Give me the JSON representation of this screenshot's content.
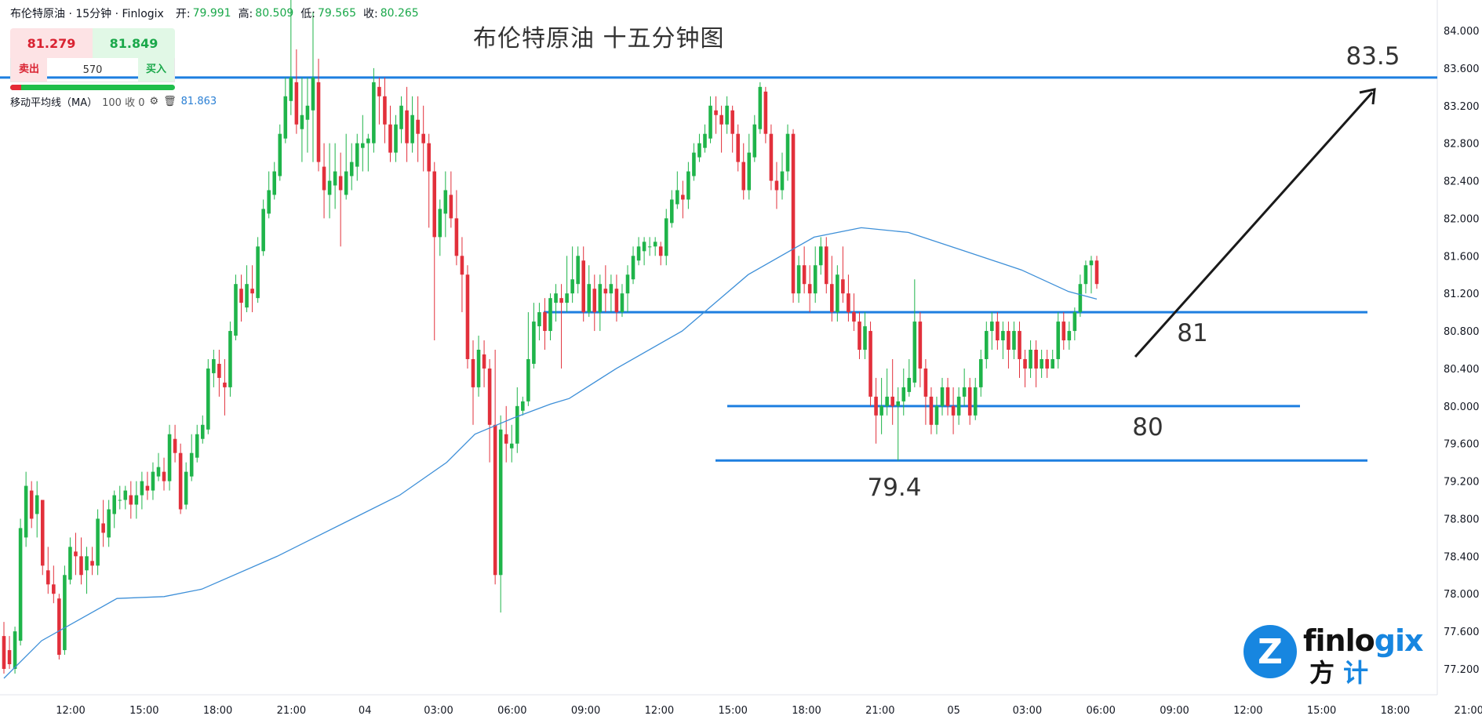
{
  "header": {
    "symbol": "布伦特原油 · 15分钟 · Finlogix",
    "open_label": "开:",
    "open": "79.991",
    "high_label": "高:",
    "high": "80.509",
    "low_label": "低:",
    "low": "79.565",
    "close_label": "收:",
    "close": "80.265"
  },
  "trade": {
    "sell_price": "81.279",
    "buy_price": "81.849",
    "sell_label": "卖出",
    "buy_label": "买入",
    "quantity": "570"
  },
  "indicator": {
    "label": "移动平均线（MA）",
    "params": "100 收 0",
    "value": "81.863",
    "gear_icon": "gear-icon",
    "trash_icon": "trash-icon"
  },
  "logo": {
    "word": "finlogix",
    "word_accent": "gix",
    "cn_1": "方",
    "cn_2": "计",
    "mark": "Z"
  },
  "chart_data": {
    "type": "candlestick",
    "title": "布伦特原油 十五分钟图",
    "ylim": [
      77.0,
      84.2
    ],
    "y_ticks": [
      "84.000",
      "83.600",
      "83.200",
      "82.800",
      "82.400",
      "82.000",
      "81.600",
      "81.200",
      "80.800",
      "80.400",
      "80.000",
      "79.600",
      "79.200",
      "78.800",
      "78.400",
      "78.000",
      "77.600",
      "77.200"
    ],
    "x_ticks": [
      "12:00",
      "15:00",
      "18:00",
      "21:00",
      "04",
      "03:00",
      "06:00",
      "09:00",
      "12:00",
      "15:00",
      "18:00",
      "21:00",
      "05",
      "03:00",
      "06:00",
      "09:00",
      "12:00",
      "15:00",
      "18:00",
      "21:00"
    ],
    "colors": {
      "up": "#1fb44a",
      "down": "#e2303b",
      "ma": "#3d8fd8",
      "level": "#1e7fe0",
      "arrow": "#1a1a1a"
    },
    "levels": [
      {
        "label": "83.5",
        "price": 83.5
      },
      {
        "label": "81",
        "price": 81.0
      },
      {
        "label": "80",
        "price": 80.0
      },
      {
        "label": "79.4",
        "price": 79.42
      }
    ],
    "candles": [
      [
        77.55,
        77.2,
        77.7,
        77.15
      ],
      [
        77.4,
        77.25,
        77.55,
        77.2
      ],
      [
        77.2,
        77.6,
        77.65,
        77.15
      ],
      [
        77.5,
        78.7,
        78.8,
        77.45
      ],
      [
        78.6,
        79.15,
        79.3,
        78.5
      ],
      [
        79.1,
        78.8,
        79.2,
        78.7
      ],
      [
        78.85,
        79.05,
        79.2,
        78.6
      ],
      [
        79.0,
        78.3,
        79.0,
        78.2
      ],
      [
        78.25,
        78.1,
        78.5,
        78.0
      ],
      [
        78.1,
        78.0,
        78.3,
        77.9
      ],
      [
        77.95,
        77.35,
        78.0,
        77.3
      ],
      [
        77.4,
        78.2,
        78.3,
        77.35
      ],
      [
        78.15,
        78.5,
        78.6,
        78.1
      ],
      [
        78.45,
        78.4,
        78.65,
        78.2
      ],
      [
        78.4,
        78.2,
        78.6,
        78.1
      ],
      [
        78.25,
        78.4,
        78.5,
        78.0
      ],
      [
        78.35,
        78.3,
        78.5,
        78.2
      ],
      [
        78.3,
        78.8,
        78.9,
        78.2
      ],
      [
        78.75,
        78.65,
        79.0,
        78.5
      ],
      [
        78.6,
        78.9,
        79.0,
        78.5
      ],
      [
        78.85,
        79.05,
        79.1,
        78.7
      ],
      [
        79.0,
        79.0,
        79.15,
        78.9
      ],
      [
        79.0,
        79.1,
        79.15,
        78.9
      ],
      [
        79.05,
        78.95,
        79.2,
        78.8
      ],
      [
        78.95,
        79.05,
        79.2,
        78.8
      ],
      [
        79.05,
        79.2,
        79.3,
        78.9
      ],
      [
        79.15,
        79.1,
        79.3,
        79.0
      ],
      [
        79.1,
        79.3,
        79.4,
        79.0
      ],
      [
        79.25,
        79.35,
        79.5,
        79.2
      ],
      [
        79.3,
        79.2,
        79.45,
        79.1
      ],
      [
        79.2,
        79.7,
        79.8,
        79.1
      ],
      [
        79.65,
        79.5,
        79.8,
        79.4
      ],
      [
        79.5,
        78.9,
        79.6,
        78.85
      ],
      [
        78.95,
        79.3,
        79.4,
        78.9
      ],
      [
        79.25,
        79.5,
        79.7,
        79.2
      ],
      [
        79.45,
        79.7,
        79.8,
        79.4
      ],
      [
        79.65,
        79.8,
        79.9,
        79.6
      ],
      [
        79.75,
        80.4,
        80.5,
        79.7
      ],
      [
        80.35,
        80.5,
        80.6,
        80.2
      ],
      [
        80.45,
        80.3,
        80.6,
        80.1
      ],
      [
        80.25,
        80.2,
        80.5,
        79.9
      ],
      [
        80.2,
        80.8,
        80.9,
        80.1
      ],
      [
        80.75,
        81.3,
        81.4,
        80.7
      ],
      [
        81.25,
        81.1,
        81.4,
        80.9
      ],
      [
        81.05,
        81.3,
        81.5,
        81.0
      ],
      [
        81.25,
        81.2,
        81.5,
        81.0
      ],
      [
        81.15,
        81.7,
        81.8,
        81.1
      ],
      [
        81.65,
        82.1,
        82.2,
        81.6
      ],
      [
        82.05,
        82.3,
        82.5,
        82.0
      ],
      [
        82.25,
        82.5,
        82.6,
        82.2
      ],
      [
        82.45,
        82.9,
        83.0,
        82.4
      ],
      [
        82.85,
        83.3,
        83.5,
        82.8
      ],
      [
        83.25,
        83.5,
        84.4,
        83.1
      ],
      [
        83.45,
        83.0,
        83.8,
        82.9
      ],
      [
        82.95,
        83.1,
        83.5,
        82.6
      ],
      [
        83.05,
        83.2,
        83.5,
        82.7
      ],
      [
        83.15,
        83.5,
        84.2,
        82.6
      ],
      [
        83.45,
        82.6,
        83.7,
        82.5
      ],
      [
        82.55,
        82.3,
        82.8,
        82.0
      ],
      [
        82.25,
        82.4,
        82.8,
        82.0
      ],
      [
        82.35,
        82.5,
        82.8,
        82.1
      ],
      [
        82.45,
        82.3,
        82.7,
        81.7
      ],
      [
        82.25,
        82.5,
        82.9,
        82.2
      ],
      [
        82.45,
        82.6,
        82.8,
        82.3
      ],
      [
        82.55,
        82.8,
        82.9,
        82.4
      ],
      [
        82.75,
        82.8,
        83.1,
        82.5
      ],
      [
        82.8,
        82.85,
        82.9,
        82.5
      ],
      [
        82.8,
        83.45,
        83.6,
        82.7
      ],
      [
        83.4,
        83.3,
        83.5,
        83.0
      ],
      [
        83.3,
        83.0,
        83.5,
        82.8
      ],
      [
        83.0,
        82.7,
        83.2,
        82.6
      ],
      [
        82.7,
        83.0,
        83.1,
        82.6
      ],
      [
        82.95,
        83.2,
        83.3,
        82.8
      ],
      [
        83.15,
        82.8,
        83.4,
        82.6
      ],
      [
        82.8,
        83.1,
        83.3,
        82.7
      ],
      [
        83.05,
        82.9,
        83.3,
        82.6
      ],
      [
        82.9,
        82.8,
        83.2,
        82.5
      ],
      [
        82.8,
        82.5,
        82.9,
        81.9
      ],
      [
        82.5,
        81.8,
        82.6,
        80.7
      ],
      [
        81.8,
        82.1,
        82.2,
        81.6
      ],
      [
        82.05,
        82.3,
        82.5,
        81.8
      ],
      [
        82.25,
        82.0,
        82.5,
        81.9
      ],
      [
        82.0,
        81.6,
        82.3,
        81.5
      ],
      [
        81.6,
        81.4,
        81.8,
        81.0
      ],
      [
        81.4,
        80.5,
        81.5,
        80.4
      ],
      [
        80.5,
        80.2,
        80.7,
        79.8
      ],
      [
        80.2,
        80.6,
        80.75,
        80.1
      ],
      [
        80.55,
        80.4,
        80.7,
        80.2
      ],
      [
        80.4,
        79.8,
        80.5,
        79.4
      ],
      [
        79.8,
        78.2,
        80.6,
        78.1
      ],
      [
        78.2,
        79.75,
        79.9,
        77.8
      ],
      [
        79.7,
        79.6,
        80.0,
        79.4
      ],
      [
        79.55,
        79.6,
        79.8,
        79.4
      ],
      [
        79.6,
        80.0,
        80.2,
        79.5
      ],
      [
        79.95,
        80.05,
        80.1,
        79.9
      ],
      [
        80.05,
        80.5,
        81.0,
        80.0
      ],
      [
        80.45,
        80.9,
        81.1,
        80.4
      ],
      [
        80.85,
        81.0,
        81.1,
        80.7
      ],
      [
        81.0,
        80.8,
        81.15,
        80.6
      ],
      [
        80.8,
        81.15,
        81.2,
        80.7
      ],
      [
        81.1,
        81.2,
        81.3,
        80.9
      ],
      [
        81.15,
        81.1,
        81.3,
        80.4
      ],
      [
        81.1,
        81.2,
        81.6,
        81.0
      ],
      [
        81.2,
        81.35,
        81.7,
        81.1
      ],
      [
        81.3,
        81.6,
        81.7,
        81.2
      ],
      [
        81.55,
        81.0,
        81.7,
        80.9
      ],
      [
        81.0,
        81.3,
        81.5,
        80.95
      ],
      [
        81.25,
        81.0,
        81.4,
        80.8
      ],
      [
        81.0,
        81.3,
        81.4,
        80.8
      ],
      [
        81.25,
        81.2,
        81.5,
        81.0
      ],
      [
        81.2,
        81.3,
        81.4,
        81.0
      ],
      [
        81.25,
        81.0,
        81.4,
        80.9
      ],
      [
        81.0,
        81.2,
        81.3,
        80.95
      ],
      [
        81.2,
        81.4,
        81.5,
        81.0
      ],
      [
        81.35,
        81.6,
        81.7,
        81.3
      ],
      [
        81.55,
        81.7,
        81.8,
        81.5
      ],
      [
        81.65,
        81.75,
        81.8,
        81.5
      ],
      [
        81.7,
        81.7,
        81.8,
        81.6
      ],
      [
        81.7,
        81.75,
        81.8,
        81.6
      ],
      [
        81.7,
        81.6,
        81.75,
        81.5
      ],
      [
        81.6,
        82.0,
        82.1,
        81.5
      ],
      [
        81.95,
        82.2,
        82.3,
        81.9
      ],
      [
        82.15,
        82.3,
        82.5,
        82.1
      ],
      [
        82.25,
        82.2,
        82.4,
        82.0
      ],
      [
        82.2,
        82.5,
        82.6,
        82.1
      ],
      [
        82.45,
        82.7,
        82.8,
        82.4
      ],
      [
        82.65,
        82.8,
        82.9,
        82.6
      ],
      [
        82.75,
        82.9,
        83.0,
        82.7
      ],
      [
        82.85,
        83.2,
        83.3,
        82.8
      ],
      [
        83.15,
        83.1,
        83.3,
        82.9
      ],
      [
        83.1,
        83.0,
        83.2,
        82.7
      ],
      [
        83.0,
        83.2,
        83.3,
        82.9
      ],
      [
        83.15,
        82.9,
        83.2,
        82.7
      ],
      [
        82.9,
        82.6,
        83.0,
        82.5
      ],
      [
        82.6,
        82.3,
        82.8,
        82.2
      ],
      [
        82.3,
        82.7,
        82.9,
        82.2
      ],
      [
        82.65,
        83.0,
        83.1,
        82.6
      ],
      [
        82.95,
        83.4,
        83.45,
        82.9
      ],
      [
        83.35,
        82.9,
        83.4,
        82.8
      ],
      [
        82.9,
        82.4,
        83.0,
        82.3
      ],
      [
        82.4,
        82.3,
        82.6,
        82.1
      ],
      [
        82.3,
        82.5,
        82.7,
        82.2
      ],
      [
        82.5,
        82.9,
        83.0,
        82.4
      ],
      [
        82.9,
        81.2,
        82.95,
        81.1
      ],
      [
        81.2,
        81.5,
        81.6,
        81.1
      ],
      [
        81.5,
        81.3,
        81.7,
        81.2
      ],
      [
        81.3,
        81.2,
        81.5,
        81.0
      ],
      [
        81.2,
        81.5,
        81.7,
        81.1
      ],
      [
        81.5,
        81.7,
        81.8,
        81.4
      ],
      [
        81.7,
        81.3,
        81.8,
        81.2
      ],
      [
        81.3,
        81.0,
        81.6,
        80.9
      ],
      [
        81.0,
        81.4,
        81.5,
        80.9
      ],
      [
        81.35,
        81.2,
        81.7,
        81.1
      ],
      [
        81.2,
        81.0,
        81.4,
        80.9
      ],
      [
        81.0,
        80.9,
        81.2,
        80.8
      ],
      [
        80.9,
        80.6,
        81.0,
        80.5
      ],
      [
        80.6,
        80.85,
        81.0,
        80.5
      ],
      [
        80.8,
        80.1,
        80.9,
        80.0
      ],
      [
        80.1,
        79.9,
        80.3,
        79.6
      ],
      [
        79.9,
        80.0,
        80.3,
        79.7
      ],
      [
        80.0,
        80.1,
        80.4,
        79.9
      ],
      [
        80.1,
        80.0,
        80.5,
        79.8
      ],
      [
        80.0,
        80.05,
        80.2,
        79.42
      ],
      [
        80.05,
        80.2,
        80.4,
        79.9
      ],
      [
        80.15,
        80.3,
        80.5,
        80.1
      ],
      [
        80.25,
        80.9,
        81.35,
        80.2
      ],
      [
        80.9,
        80.4,
        81.0,
        80.2
      ],
      [
        80.4,
        80.1,
        80.5,
        79.8
      ],
      [
        80.1,
        79.8,
        80.2,
        79.7
      ],
      [
        79.8,
        80.0,
        80.1,
        79.7
      ],
      [
        80.0,
        80.2,
        80.3,
        79.9
      ],
      [
        80.2,
        80.0,
        80.3,
        79.9
      ],
      [
        80.0,
        79.9,
        80.2,
        79.7
      ],
      [
        79.9,
        80.1,
        80.2,
        79.8
      ],
      [
        80.1,
        80.2,
        80.4,
        80.0
      ],
      [
        80.2,
        79.9,
        80.3,
        79.8
      ],
      [
        79.9,
        80.2,
        80.3,
        79.85
      ],
      [
        80.2,
        80.5,
        80.6,
        80.1
      ],
      [
        80.5,
        80.8,
        80.9,
        80.4
      ],
      [
        80.8,
        80.9,
        81.0,
        80.6
      ],
      [
        80.9,
        80.7,
        81.0,
        80.6
      ],
      [
        80.7,
        80.8,
        80.9,
        80.5
      ],
      [
        80.8,
        80.6,
        80.9,
        80.4
      ],
      [
        80.6,
        80.8,
        80.9,
        80.5
      ],
      [
        80.8,
        80.5,
        80.9,
        80.3
      ],
      [
        80.5,
        80.4,
        80.6,
        80.2
      ],
      [
        80.4,
        80.6,
        80.7,
        80.3
      ],
      [
        80.6,
        80.4,
        80.7,
        80.2
      ],
      [
        80.4,
        80.5,
        80.6,
        80.3
      ],
      [
        80.5,
        80.4,
        80.6,
        80.3
      ],
      [
        80.4,
        80.5,
        80.6,
        80.4
      ],
      [
        80.5,
        80.9,
        81.0,
        80.4
      ],
      [
        80.9,
        80.7,
        81.0,
        80.6
      ],
      [
        80.7,
        80.8,
        80.9,
        80.6
      ],
      [
        80.8,
        81.0,
        81.05,
        80.7
      ],
      [
        81.0,
        81.3,
        81.4,
        80.95
      ],
      [
        81.3,
        81.5,
        81.55,
        81.2
      ],
      [
        81.5,
        81.55,
        81.6,
        81.2
      ],
      [
        81.55,
        81.3,
        81.6,
        81.25
      ]
    ],
    "ma": [
      [
        0,
        77.1
      ],
      [
        40,
        77.5
      ],
      [
        120,
        77.95
      ],
      [
        170,
        77.97
      ],
      [
        210,
        78.05
      ],
      [
        290,
        78.4
      ],
      [
        370,
        78.8
      ],
      [
        420,
        79.05
      ],
      [
        470,
        79.4
      ],
      [
        500,
        79.7
      ],
      [
        540,
        79.87
      ],
      [
        580,
        80.02
      ],
      [
        600,
        80.08
      ],
      [
        650,
        80.4
      ],
      [
        720,
        80.8
      ],
      [
        790,
        81.4
      ],
      [
        860,
        81.8
      ],
      [
        910,
        81.9
      ],
      [
        960,
        81.85
      ],
      [
        1020,
        81.65
      ],
      [
        1080,
        81.45
      ],
      [
        1130,
        81.22
      ],
      [
        1160,
        81.14
      ]
    ]
  }
}
